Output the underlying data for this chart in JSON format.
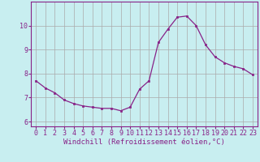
{
  "x": [
    0,
    1,
    2,
    3,
    4,
    5,
    6,
    7,
    8,
    9,
    10,
    11,
    12,
    13,
    14,
    15,
    16,
    17,
    18,
    19,
    20,
    21,
    22,
    23
  ],
  "y": [
    7.7,
    7.4,
    7.2,
    6.9,
    6.75,
    6.65,
    6.6,
    6.55,
    6.55,
    6.45,
    6.6,
    7.35,
    7.7,
    9.3,
    9.85,
    10.35,
    10.4,
    10.0,
    9.2,
    8.7,
    8.45,
    8.3,
    8.2,
    7.95
  ],
  "line_color": "#882288",
  "marker": "s",
  "marker_size": 2,
  "bg_color": "#c8eef0",
  "grid_color": "#aaaaaa",
  "xlabel": "Windchill (Refroidissement éolien,°C)",
  "xlim": [
    -0.5,
    23.5
  ],
  "ylim": [
    5.8,
    11.0
  ],
  "yticks": [
    6,
    7,
    8,
    9,
    10
  ],
  "xticks": [
    0,
    1,
    2,
    3,
    4,
    5,
    6,
    7,
    8,
    9,
    10,
    11,
    12,
    13,
    14,
    15,
    16,
    17,
    18,
    19,
    20,
    21,
    22,
    23
  ],
  "xlabel_color": "#882288",
  "tick_color": "#882288",
  "axis_color": "#882288",
  "label_fontsize": 6.5,
  "tick_fontsize": 6.0
}
